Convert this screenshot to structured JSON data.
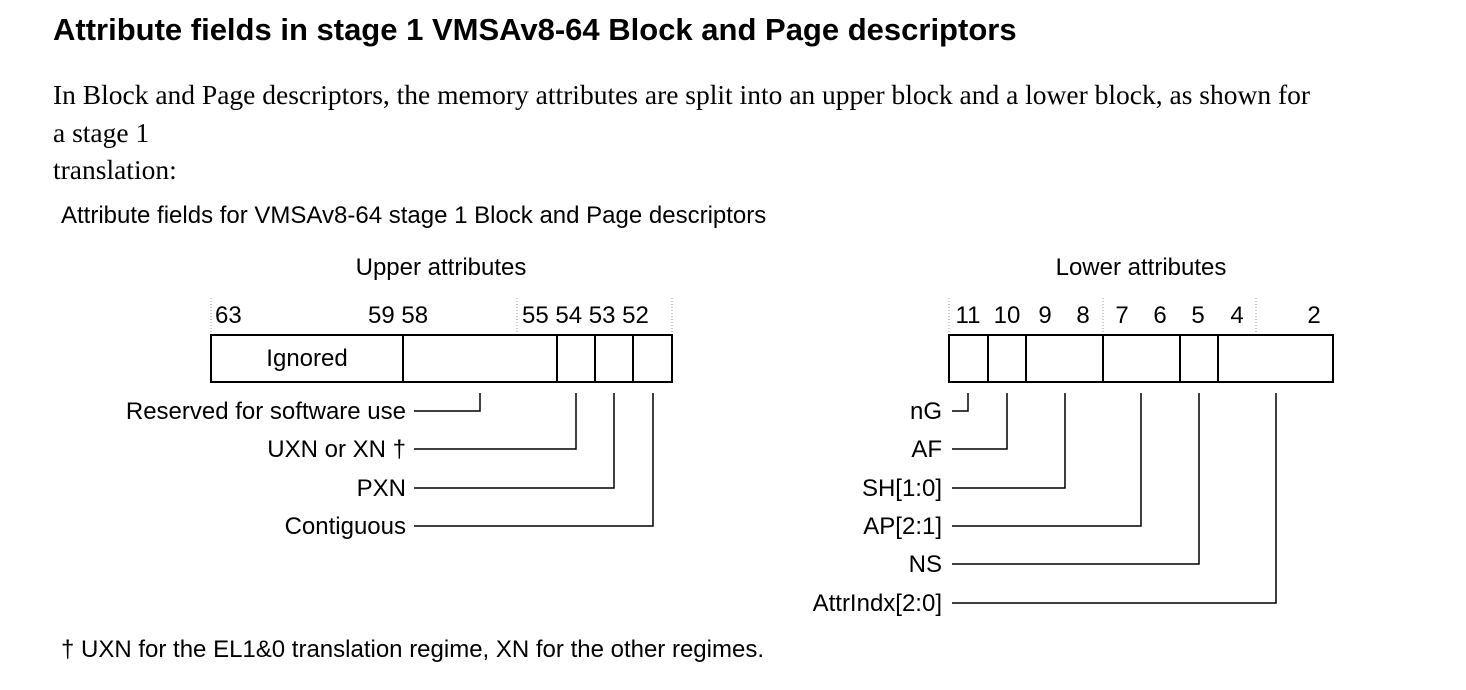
{
  "heading": "Attribute fields in stage 1 VMSAv8-64 Block and Page descriptors",
  "intro_lines": [
    "In Block and Page descriptors, the memory attributes are split into an upper block and a lower block, as shown for",
    "a stage 1",
    "translation:"
  ],
  "figure_caption": "Attribute fields for VMSAv8-64 stage 1 Block and Page descriptors",
  "upper": {
    "title": "Upper attributes",
    "bit_labels": [
      "63",
      "59 58",
      "55 54 53 52"
    ],
    "ignored_label": "Ignored",
    "fields": [
      {
        "label": "Reserved for software use"
      },
      {
        "label": "UXN or XN †"
      },
      {
        "label": "PXN"
      },
      {
        "label": "Contiguous"
      }
    ]
  },
  "lower": {
    "title": "Lower attributes",
    "bit_labels": [
      "11",
      "10",
      "9",
      "8",
      "7",
      "6",
      "5",
      "4",
      "2"
    ],
    "fields": [
      {
        "label": "nG"
      },
      {
        "label": "AF"
      },
      {
        "label": "SH[1:0]"
      },
      {
        "label": "AP[2:1]"
      },
      {
        "label": "NS"
      },
      {
        "label": "AttrIndx[2:0]"
      }
    ]
  },
  "footnote": "† UXN for the EL1&0 translation regime, XN for the other regimes."
}
